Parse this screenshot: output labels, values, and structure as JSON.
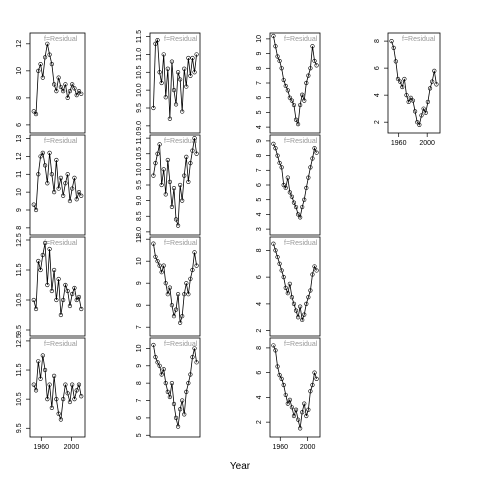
{
  "x_label": "Year",
  "chart_data": [
    {
      "type": "line",
      "strip": "f=Residual",
      "x": [
        1950,
        1953,
        1956,
        1959,
        1962,
        1965,
        1968,
        1971,
        1974,
        1977,
        1980,
        1983,
        1986,
        1989,
        1992,
        1995,
        1998,
        2001,
        2004,
        2007,
        2010,
        2013
      ],
      "values": [
        7,
        6.8,
        10,
        10.5,
        9.5,
        11,
        12,
        11.2,
        10.5,
        9,
        8.5,
        9.5,
        8.8,
        8.5,
        9,
        8,
        8.5,
        9,
        8.7,
        8.2,
        8.5,
        8.3
      ],
      "xlim": [
        1945,
        2018
      ],
      "ylim": [
        5.4,
        12.8
      ],
      "yticks": [
        6,
        8,
        10,
        12
      ]
    },
    {
      "type": "line",
      "strip": "f=Residual",
      "x": [
        1950,
        1953,
        1956,
        1959,
        1962,
        1965,
        1968,
        1971,
        1974,
        1977,
        1980,
        1983,
        1986,
        1989,
        1992,
        1995,
        1998,
        2001,
        2004,
        2007,
        2010,
        2013
      ],
      "values": [
        9.5,
        11.3,
        11.4,
        10.5,
        10.2,
        11,
        9.8,
        10.6,
        9.2,
        10.8,
        10,
        9.6,
        10.5,
        10.3,
        9.4,
        10.6,
        10.1,
        10.9,
        10.4,
        10.9,
        10.5,
        11
      ],
      "xlim": [
        1945,
        2018
      ],
      "ylim": [
        8.8,
        11.6
      ],
      "yticks": [
        {
          "value": 9,
          "label": "9.0"
        },
        9.5,
        {
          "value": 10,
          "label": "10.0"
        },
        10.5,
        {
          "value": 11,
          "label": "11.0"
        },
        11.5
      ]
    },
    {
      "type": "line",
      "strip": "f=Residual",
      "x": [
        1950,
        1953,
        1956,
        1959,
        1962,
        1965,
        1968,
        1971,
        1974,
        1977,
        1980,
        1983,
        1986,
        1989,
        1992,
        1995,
        1998,
        2001,
        2004,
        2007,
        2010,
        2013
      ],
      "values": [
        10.2,
        9.5,
        8.8,
        8.5,
        8,
        7.2,
        6.8,
        6.5,
        6,
        5.8,
        5.5,
        4.5,
        4.2,
        5.5,
        6.2,
        5.8,
        7,
        7.5,
        8,
        9.5,
        8.5,
        8.2
      ],
      "xlim": [
        1945,
        2018
      ],
      "ylim": [
        3.6,
        10.4
      ],
      "yticks": [
        4,
        5,
        6,
        7,
        8,
        9,
        10
      ]
    },
    {
      "type": "line",
      "strip": "f=Residual",
      "x": [
        1950,
        1953,
        1956,
        1959,
        1962,
        1965,
        1968,
        1971,
        1974,
        1977,
        1980,
        1983,
        1986,
        1989,
        1992,
        1995,
        1998,
        2001,
        2004,
        2007,
        2010,
        2013
      ],
      "values": [
        8,
        7.5,
        6.5,
        5.2,
        5,
        4.6,
        5.2,
        4,
        3.5,
        3.8,
        3.6,
        2.8,
        2,
        1.8,
        2.5,
        3,
        2.7,
        3.5,
        4.5,
        5,
        5.8,
        4.8
      ],
      "xlim": [
        1945,
        2018
      ],
      "ylim": [
        1.2,
        8.6
      ],
      "yticks": [
        2,
        4,
        6,
        8
      ],
      "xticks": [
        1960,
        2000
      ]
    },
    {
      "type": "line",
      "strip": "f=Residual",
      "x": [
        1950,
        1953,
        1956,
        1959,
        1962,
        1965,
        1968,
        1971,
        1974,
        1977,
        1980,
        1983,
        1986,
        1989,
        1992,
        1995,
        1998,
        2001,
        2004,
        2007,
        2010,
        2013
      ],
      "values": [
        9.3,
        9,
        11,
        12,
        12.2,
        11.5,
        10.5,
        12.2,
        11,
        10,
        11.8,
        10.2,
        10.8,
        9.8,
        10.5,
        11,
        9.5,
        10.2,
        10.8,
        9.6,
        10,
        9.8
      ],
      "xlim": [
        1945,
        2018
      ],
      "ylim": [
        7.6,
        13.2
      ],
      "yticks": [
        8,
        9,
        10,
        11,
        12,
        13
      ]
    },
    {
      "type": "line",
      "strip": "f=Residual",
      "x": [
        1950,
        1953,
        1956,
        1959,
        1962,
        1965,
        1968,
        1971,
        1974,
        1977,
        1980,
        1983,
        1986,
        1989,
        1992,
        1995,
        1998,
        2001,
        2004,
        2007,
        2010,
        2013
      ],
      "values": [
        9.8,
        10.2,
        10.5,
        10.8,
        9.5,
        10,
        9.2,
        10.3,
        9.6,
        8.8,
        9.4,
        8.4,
        8.2,
        9.5,
        9,
        9.8,
        10.4,
        9.6,
        10.2,
        10.6,
        11,
        10.5
      ],
      "xlim": [
        1945,
        2018
      ],
      "ylim": [
        7.9,
        11.1
      ],
      "yticks": [
        {
          "value": 8,
          "label": "8.0"
        },
        8.5,
        {
          "value": 9,
          "label": "9.0"
        },
        9.5,
        {
          "value": 10,
          "label": "10.0"
        },
        10.5,
        {
          "value": 11,
          "label": "11.0"
        }
      ]
    },
    {
      "type": "line",
      "strip": "f=Residual",
      "x": [
        1950,
        1953,
        1956,
        1959,
        1962,
        1965,
        1968,
        1971,
        1974,
        1977,
        1980,
        1983,
        1986,
        1989,
        1992,
        1995,
        1998,
        2001,
        2004,
        2007,
        2010,
        2013
      ],
      "values": [
        8.8,
        8.5,
        8,
        7.5,
        7.2,
        6,
        5.8,
        6.5,
        5.5,
        5.2,
        4.8,
        4.5,
        4,
        3.8,
        4.5,
        5,
        5.8,
        6.5,
        7.2,
        7.8,
        8.5,
        8.2
      ],
      "xlim": [
        1945,
        2018
      ],
      "ylim": [
        2.6,
        9.4
      ],
      "yticks": [
        3,
        4,
        5,
        6,
        7,
        8,
        9
      ]
    },
    {
      "type": "line",
      "strip": "f=Residual",
      "x": [
        1950,
        1953,
        1956,
        1959,
        1962,
        1965,
        1968,
        1971,
        1974,
        1977,
        1980,
        1983,
        1986,
        1989,
        1992,
        1995,
        1998,
        2001,
        2004,
        2007,
        2010,
        2013
      ],
      "values": [
        10.5,
        10.2,
        11.8,
        11.5,
        12,
        12.4,
        11,
        12.2,
        10.8,
        11.5,
        10.5,
        11.2,
        10,
        10.5,
        11,
        10.8,
        10.3,
        10.7,
        10.9,
        10.5,
        10.6,
        10.2
      ],
      "xlim": [
        1945,
        2018
      ],
      "ylim": [
        9.3,
        12.6
      ],
      "yticks": [
        9.5,
        10.5,
        11.5,
        12.5
      ]
    },
    {
      "type": "line",
      "strip": "f=Residual",
      "x": [
        1950,
        1953,
        1956,
        1959,
        1962,
        1965,
        1968,
        1971,
        1974,
        1977,
        1980,
        1983,
        1986,
        1989,
        1992,
        1995,
        1998,
        2001,
        2004,
        2007,
        2010,
        2013
      ],
      "values": [
        10.8,
        10.2,
        10,
        9.8,
        9.5,
        9.8,
        9,
        8.5,
        8.8,
        8,
        7.5,
        7.8,
        8.5,
        7.2,
        7.5,
        8.5,
        9,
        8.5,
        9.2,
        9.6,
        10.4,
        9.8
      ],
      "xlim": [
        1945,
        2018
      ],
      "ylim": [
        6.6,
        11.1
      ],
      "yticks": [
        7,
        8,
        9,
        10,
        11
      ]
    },
    {
      "type": "line",
      "strip": "f=Residual",
      "x": [
        1950,
        1953,
        1956,
        1959,
        1962,
        1965,
        1968,
        1971,
        1974,
        1977,
        1980,
        1983,
        1986,
        1989,
        1992,
        1995,
        1998,
        2001,
        2004,
        2007,
        2010,
        2013
      ],
      "values": [
        8.5,
        8,
        7.5,
        7,
        6.5,
        6,
        5.2,
        4.8,
        5.5,
        4.5,
        4,
        3.5,
        3,
        3.8,
        2.8,
        3.2,
        4,
        4.5,
        5,
        6.2,
        6.8,
        6.5
      ],
      "xlim": [
        1945,
        2018
      ],
      "ylim": [
        1.6,
        9.0
      ],
      "yticks": [
        2,
        4,
        6,
        8
      ]
    },
    {
      "type": "line",
      "strip": "f=Residual",
      "x": [
        1950,
        1953,
        1956,
        1959,
        1962,
        1965,
        1968,
        1971,
        1974,
        1977,
        1980,
        1983,
        1986,
        1989,
        1992,
        1995,
        1998,
        2001,
        2004,
        2007,
        2010,
        2013
      ],
      "values": [
        11,
        10.8,
        11.8,
        11.2,
        12,
        11.5,
        10.5,
        11,
        10.2,
        11.3,
        10.5,
        10,
        9.8,
        10.5,
        11,
        10.7,
        10.4,
        11,
        10.5,
        10.8,
        11,
        10.6
      ],
      "xlim": [
        1945,
        2018
      ],
      "ylim": [
        9.2,
        12.6
      ],
      "yticks": [
        9.5,
        10.5,
        11.5,
        12.5
      ],
      "xticks": [
        1960,
        2000
      ]
    },
    {
      "type": "line",
      "strip": "f=Residual",
      "x": [
        1950,
        1953,
        1956,
        1959,
        1962,
        1965,
        1968,
        1971,
        1974,
        1977,
        1980,
        1983,
        1986,
        1989,
        1992,
        1995,
        1998,
        2001,
        2004,
        2007,
        2010,
        2013
      ],
      "values": [
        10.2,
        9.5,
        9.2,
        9,
        8.5,
        8.8,
        8,
        7.5,
        7.2,
        8,
        6.8,
        6,
        5.5,
        6.5,
        7,
        6.2,
        7.5,
        8,
        8.5,
        9.5,
        10,
        9.2
      ],
      "xlim": [
        1945,
        2018
      ],
      "ylim": [
        4.9,
        10.6
      ],
      "yticks": [
        5,
        6,
        7,
        8,
        9,
        10
      ]
    },
    {
      "type": "line",
      "strip": "f=Residual",
      "x": [
        1950,
        1953,
        1956,
        1959,
        1962,
        1965,
        1968,
        1971,
        1974,
        1977,
        1980,
        1983,
        1986,
        1989,
        1992,
        1995,
        1998,
        2001,
        2004,
        2007,
        2010,
        2013
      ],
      "values": [
        8.2,
        7.8,
        6.5,
        5.8,
        5.5,
        5,
        4.2,
        3.5,
        3.8,
        3.2,
        2.5,
        3,
        2.2,
        1.5,
        2.8,
        3.5,
        2.5,
        3,
        4.5,
        5,
        6,
        5.5
      ],
      "xlim": [
        1945,
        2018
      ],
      "ylim": [
        0.8,
        8.8
      ],
      "yticks": [
        2,
        4,
        6,
        8
      ],
      "xticks": [
        1960,
        2000
      ]
    }
  ]
}
